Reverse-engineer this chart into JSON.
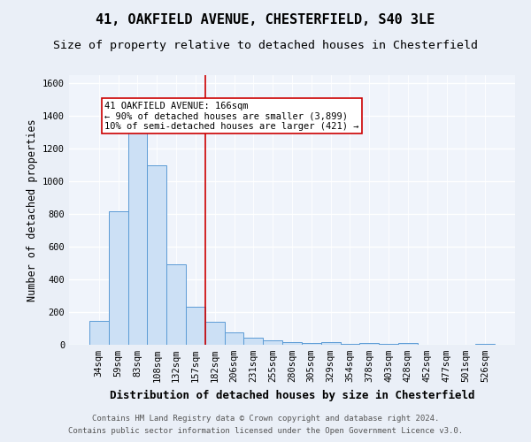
{
  "title_line1": "41, OAKFIELD AVENUE, CHESTERFIELD, S40 3LE",
  "title_line2": "Size of property relative to detached houses in Chesterfield",
  "xlabel": "Distribution of detached houses by size in Chesterfield",
  "ylabel": "Number of detached properties",
  "footer_line1": "Contains HM Land Registry data © Crown copyright and database right 2024.",
  "footer_line2": "Contains public sector information licensed under the Open Government Licence v3.0.",
  "categories": [
    "34sqm",
    "59sqm",
    "83sqm",
    "108sqm",
    "132sqm",
    "157sqm",
    "182sqm",
    "206sqm",
    "231sqm",
    "255sqm",
    "280sqm",
    "305sqm",
    "329sqm",
    "354sqm",
    "378sqm",
    "403sqm",
    "428sqm",
    "452sqm",
    "477sqm",
    "501sqm",
    "526sqm"
  ],
  "values": [
    145,
    815,
    1300,
    1100,
    490,
    235,
    140,
    75,
    45,
    25,
    15,
    10,
    15,
    5,
    10,
    5,
    10,
    0,
    0,
    0,
    5
  ],
  "bar_color": "#cce0f5",
  "bar_edge_color": "#5b9bd5",
  "vline_x": 5.5,
  "vline_color": "#cc0000",
  "annotation_text": "41 OAKFIELD AVENUE: 166sqm\n← 90% of detached houses are smaller (3,899)\n10% of semi-detached houses are larger (421) →",
  "annotation_box_color": "white",
  "annotation_box_edge_color": "#cc0000",
  "ylim": [
    0,
    1650
  ],
  "yticks": [
    0,
    200,
    400,
    600,
    800,
    1000,
    1200,
    1400,
    1600
  ],
  "bg_color": "#eaeff7",
  "plot_bg_color": "#f0f4fb",
  "grid_color": "#ffffff",
  "title_fontsize": 11,
  "subtitle_fontsize": 9.5,
  "axis_label_fontsize": 8.5,
  "tick_fontsize": 7.5,
  "footer_fontsize": 6.5
}
